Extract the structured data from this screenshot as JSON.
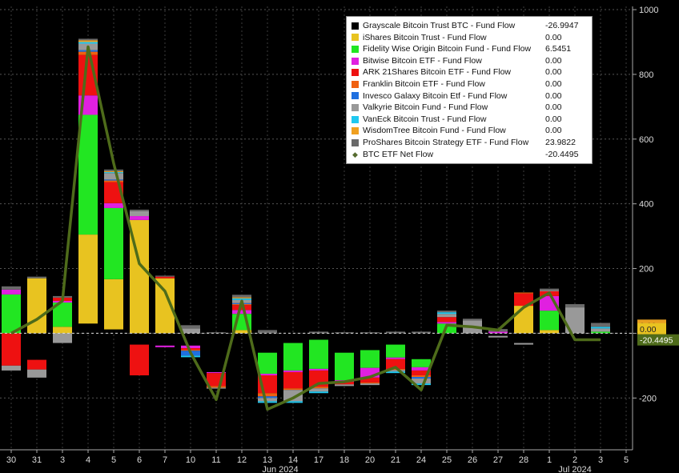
{
  "chart_data": {
    "type": "bar",
    "stacked": true,
    "categories": [
      "30",
      "31",
      "3",
      "4",
      "5",
      "6",
      "7",
      "10",
      "11",
      "12",
      "13",
      "14",
      "17",
      "18",
      "20",
      "21",
      "24",
      "25",
      "26",
      "27",
      "28",
      "1",
      "2",
      "3",
      "5"
    ],
    "month_labels": [
      {
        "label": "Jun 2024",
        "at_index": 10.5
      },
      {
        "label": "Jul 2024",
        "at_index": 22
      }
    ],
    "ylim": [
      -360,
      1010
    ],
    "yticks": [
      -200,
      0,
      200,
      400,
      600,
      800,
      1000
    ],
    "series": [
      {
        "name": "Grayscale Bitcoin Trust BTC - Fund Flow",
        "color": "#000000",
        "value": "-26.9947",
        "values": [
          0,
          -82,
          0,
          30,
          12,
          -35,
          -38,
          -38,
          -120,
          0,
          -60,
          -30,
          -20,
          -60,
          -52,
          -35,
          -80,
          -35,
          0,
          -8,
          -30,
          0,
          -18,
          -18,
          0
        ]
      },
      {
        "name": "iShares Bitcoin Trust - Fund Flow",
        "color": "#e8c320",
        "value": "0.00",
        "values": [
          0,
          170,
          20,
          275,
          155,
          350,
          170,
          0,
          0,
          10,
          0,
          0,
          0,
          0,
          0,
          0,
          0,
          0,
          0,
          0,
          85,
          10,
          0,
          0,
          0
        ]
      },
      {
        "name": "Fidelity Wise Origin Bitcoin Fund - Fund Flow",
        "color": "#22e622",
        "value": "6.5451",
        "values": [
          120,
          0,
          75,
          370,
          220,
          0,
          0,
          0,
          0,
          50,
          -65,
          -85,
          -90,
          -85,
          -55,
          -40,
          -25,
          30,
          0,
          0,
          0,
          60,
          0,
          5,
          0
        ]
      },
      {
        "name": "Bitwise Bitcoin ETF - Fund Flow",
        "color": "#e020e0",
        "value": "0.00",
        "values": [
          15,
          0,
          5,
          60,
          15,
          12,
          -5,
          -8,
          -3,
          12,
          -5,
          -5,
          -5,
          -5,
          -30,
          -5,
          -10,
          5,
          0,
          5,
          0,
          45,
          0,
          0,
          0
        ]
      },
      {
        "name": "ARK 21Shares Bitcoin ETF - Fund Flow",
        "color": "#ee1111",
        "value": "0.00",
        "values": [
          -100,
          -30,
          10,
          125,
          65,
          -95,
          5,
          -5,
          -40,
          15,
          -55,
          -50,
          -50,
          -8,
          -15,
          -30,
          -15,
          15,
          0,
          0,
          38,
          15,
          0,
          0,
          0
        ]
      },
      {
        "name": "Franklin Bitcoin ETF - Fund Flow",
        "color": "#f06010",
        "value": "0.00",
        "values": [
          0,
          0,
          0,
          10,
          5,
          0,
          0,
          -3,
          -5,
          3,
          -10,
          -5,
          -5,
          0,
          -3,
          -3,
          -5,
          0,
          0,
          0,
          3,
          0,
          0,
          0,
          0
        ]
      },
      {
        "name": "Invesco Galaxy Bitcoin Etf - Fund Flow",
        "color": "#2070e0",
        "value": "0.00",
        "values": [
          0,
          0,
          0,
          5,
          3,
          0,
          0,
          -15,
          0,
          3,
          -5,
          0,
          0,
          0,
          0,
          0,
          -5,
          0,
          0,
          0,
          0,
          0,
          0,
          0,
          0
        ]
      },
      {
        "name": "Valkyrie Bitcoin Fund - Fund Flow",
        "color": "#999999",
        "value": "0.00",
        "values": [
          -15,
          -25,
          -30,
          20,
          20,
          15,
          0,
          15,
          -3,
          10,
          -10,
          -35,
          -10,
          -5,
          -5,
          -5,
          -15,
          10,
          40,
          -5,
          -5,
          3,
          80,
          10,
          0
        ]
      },
      {
        "name": "VanEck Bitcoin Trust - Fund Flow",
        "color": "#20c8f0",
        "value": "0.00",
        "values": [
          0,
          0,
          0,
          5,
          3,
          0,
          0,
          -5,
          0,
          5,
          -5,
          -5,
          -5,
          0,
          0,
          -5,
          -5,
          5,
          0,
          0,
          0,
          0,
          0,
          5,
          0
        ]
      },
      {
        "name": "WisdomTree Bitcoin Fund - Fund Flow",
        "color": "#f0a020",
        "value": "0.00",
        "values": [
          0,
          0,
          0,
          5,
          3,
          0,
          0,
          0,
          0,
          3,
          0,
          0,
          0,
          0,
          0,
          0,
          0,
          0,
          0,
          0,
          0,
          0,
          0,
          0,
          0
        ]
      },
      {
        "name": "ProShares Bitcoin Strategy ETF - Fund Flow",
        "color": "#6a6a6a",
        "value": "23.9822",
        "values": [
          10,
          5,
          5,
          5,
          5,
          5,
          3,
          10,
          3,
          8,
          10,
          0,
          5,
          3,
          3,
          5,
          5,
          5,
          5,
          8,
          0,
          5,
          10,
          12,
          0
        ]
      }
    ],
    "net_flow": {
      "name": "BTC ETF Net Flow",
      "color": "#4e6b1a",
      "value": "-20.4495",
      "values": [
        0,
        43,
        100,
        885,
        525,
        215,
        130,
        -60,
        -205,
        100,
        -235,
        -200,
        -155,
        -150,
        -135,
        -105,
        -175,
        25,
        20,
        10,
        80,
        125,
        -20,
        -20
      ]
    },
    "right_labels": [
      {
        "text": "0.00",
        "color": "#e8a020",
        "y": 25
      },
      {
        "text": "0.00",
        "color": "#e8c320",
        "y": 14
      },
      {
        "text": "-20.4495",
        "color": "#4e6b1a",
        "y": -20.4495
      }
    ],
    "xlabel": "",
    "ylabel": "",
    "grid": true,
    "legend_position": "top-right"
  }
}
